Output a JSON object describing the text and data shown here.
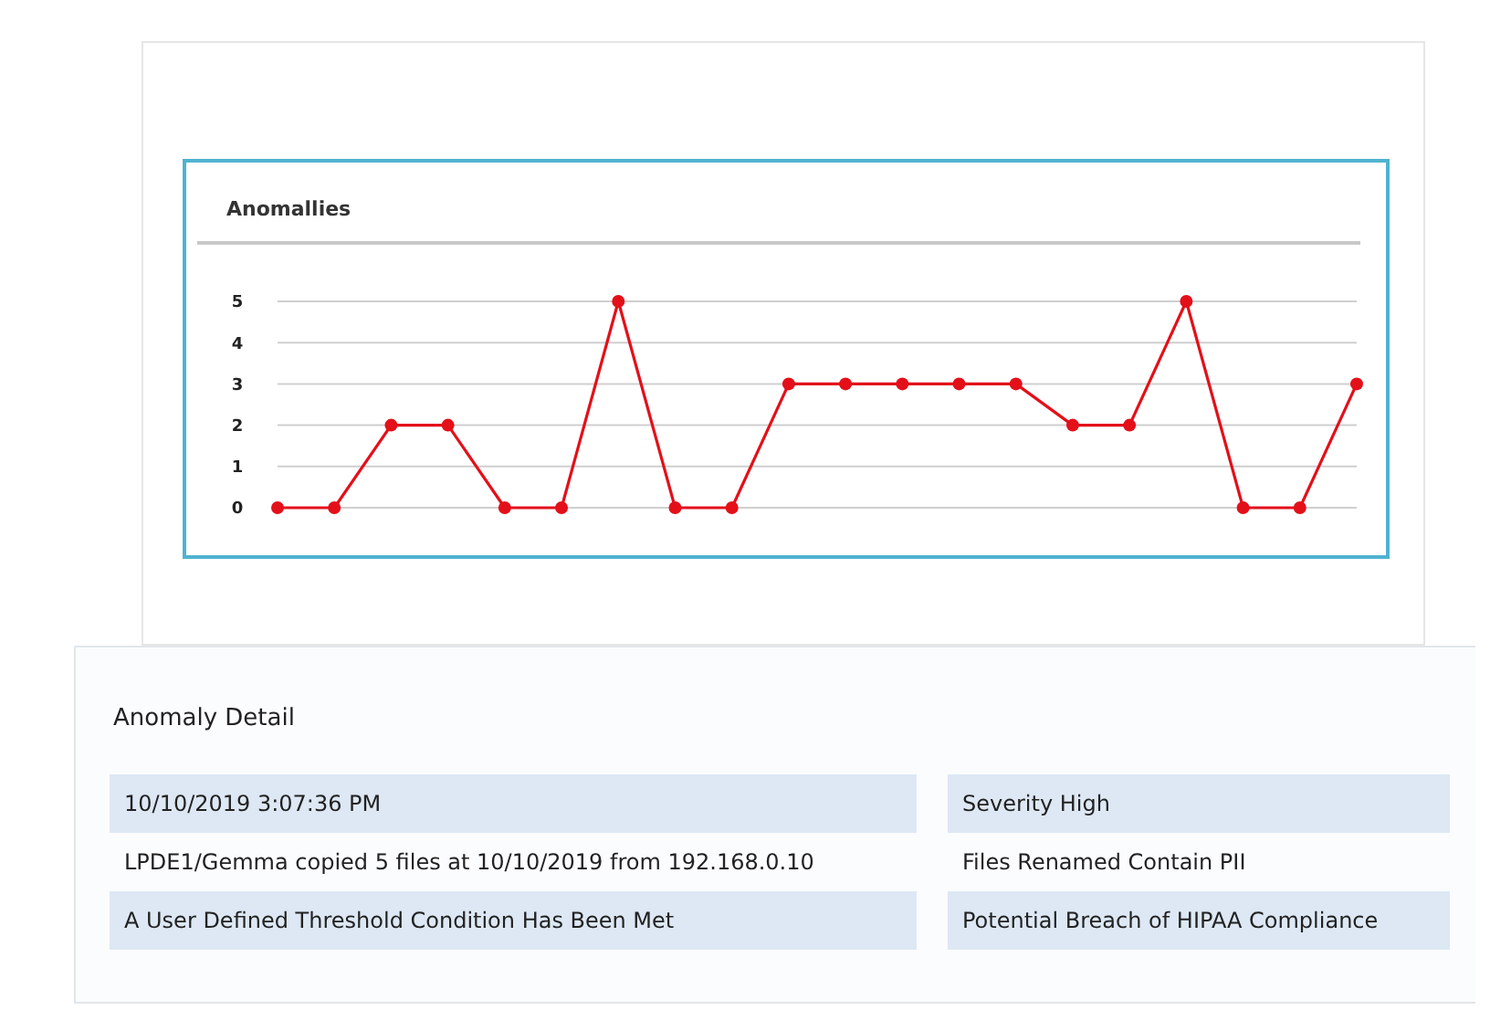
{
  "chart_data": [
    {
      "type": "line",
      "title": "Anomallies",
      "categories": [
        null,
        null,
        null,
        null,
        null,
        null,
        null,
        null,
        null,
        null,
        null,
        null,
        null,
        null,
        null,
        null,
        null,
        null,
        null,
        null
      ],
      "series": [
        {
          "color": "#e3101a",
          "values": [
            0,
            0,
            2,
            2,
            0,
            0,
            5,
            0,
            0,
            3,
            3,
            3,
            3,
            3,
            2,
            2,
            5,
            0,
            0,
            3
          ]
        }
      ],
      "ylim": [
        0,
        5
      ],
      "yticks": [
        0,
        1,
        2,
        3,
        4,
        5
      ],
      "grid": "y",
      "marker": "circle",
      "tick_labels": "y"
    },
    {
      "type": "other",
      "title": "Anomaly Detail",
      "annotations": [
        "10/10/2019 3:07:36 PM",
        "Severity High",
        "LPDE1/Gemma copied 5 files at 10/10/2019 from 192.168.0.10",
        "Files Renamed Contain PII",
        "A User Defined Threshold Condition Has Been Met",
        "Potential Breach of HIPAA Compliance"
      ]
    }
  ]
}
